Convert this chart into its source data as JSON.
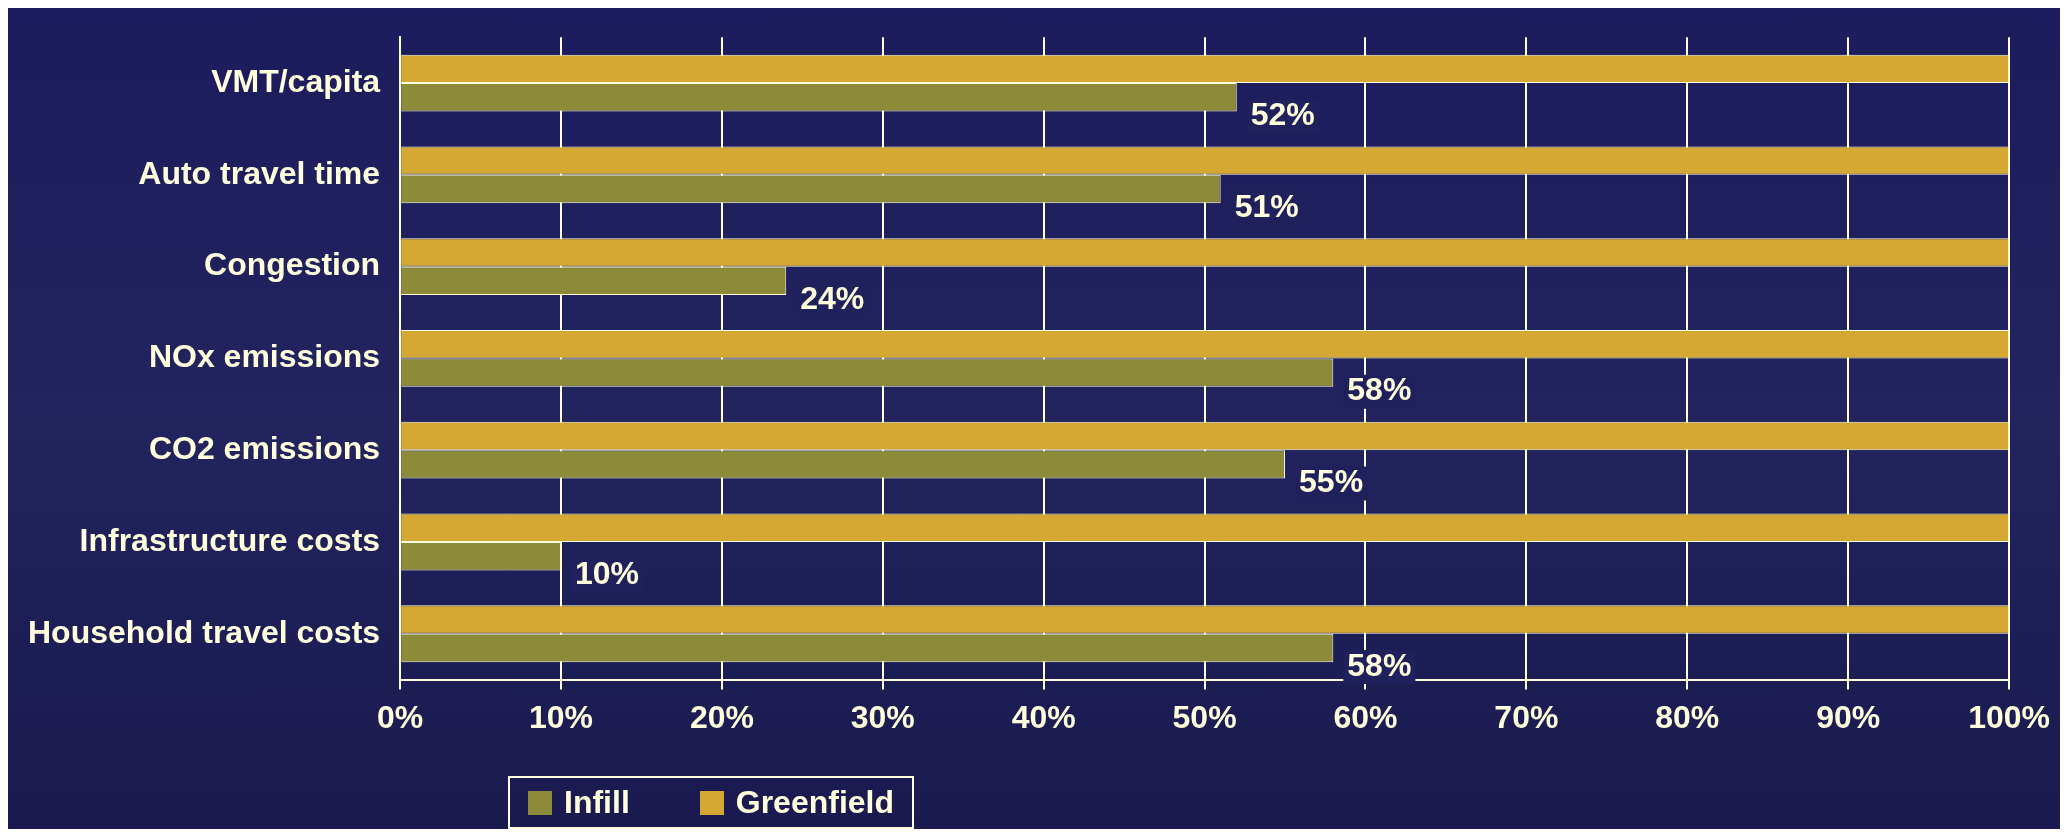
{
  "chart_data": {
    "type": "bar",
    "orientation": "horizontal",
    "categories": [
      "VMT/capita",
      "Auto travel time",
      "Congestion",
      "NOx emissions",
      "CO2 emissions",
      "Infrastructure costs",
      "Household travel costs"
    ],
    "series": [
      {
        "name": "Greenfield",
        "color": "#d4a832",
        "values": [
          100,
          100,
          100,
          100,
          100,
          100,
          100
        ]
      },
      {
        "name": "Infill",
        "color": "#8b8b3a",
        "values": [
          52,
          51,
          24,
          58,
          55,
          10,
          58
        ],
        "value_labels": [
          "52%",
          "51%",
          "24%",
          "58%",
          "55%",
          "10%",
          "58%"
        ]
      }
    ],
    "xlim": [
      0,
      100
    ],
    "xticks": [
      {
        "value": 0,
        "label": "0%"
      },
      {
        "value": 10,
        "label": "10%"
      },
      {
        "value": 20,
        "label": "20%"
      },
      {
        "value": 30,
        "label": "30%"
      },
      {
        "value": 40,
        "label": "40%"
      },
      {
        "value": 50,
        "label": "50%"
      },
      {
        "value": 60,
        "label": "60%"
      },
      {
        "value": 70,
        "label": "70%"
      },
      {
        "value": 80,
        "label": "80%"
      },
      {
        "value": 90,
        "label": "90%"
      },
      {
        "value": 100,
        "label": "100%"
      }
    ],
    "grid": "x",
    "legend": "bottom"
  }
}
